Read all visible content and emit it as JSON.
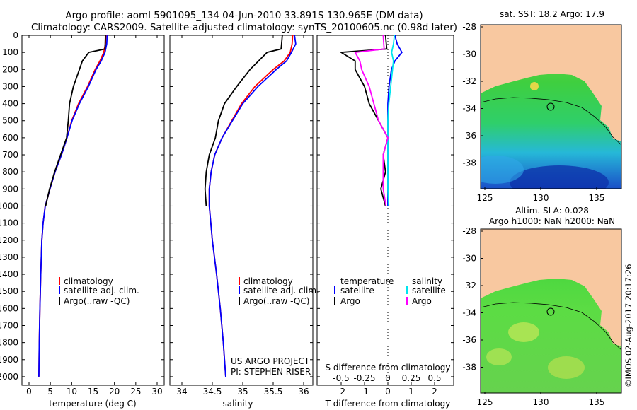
{
  "header": {
    "title_line1": "Argo profile: aoml 5901095_134 04-Jun-2010 33.891S 130.965E (DM data)",
    "title_line2": "Climatology: CARS2009. Satellite-adjusted climatology: synTS_20100605.nc (0.98d later)"
  },
  "colors": {
    "climatology": "#ff0000",
    "satellite": "#0000ff",
    "argo": "#000000",
    "temp_satellite": "#0000ff",
    "sal_satellite": "#00e5ee",
    "sal_argo": "#ff00ff",
    "land": "#f8c8a0"
  },
  "depth_axis": {
    "ticks": [
      "0",
      "100",
      "200",
      "300",
      "400",
      "500",
      "600",
      "700",
      "800",
      "900",
      "1000",
      "1100",
      "1200",
      "1300",
      "1400",
      "1500",
      "1600",
      "1700",
      "1800",
      "1900",
      "2000"
    ]
  },
  "panel_temp": {
    "xlabel": "temperature (deg C)",
    "xticks": [
      "0",
      "5",
      "10",
      "15",
      "20",
      "25",
      "30"
    ],
    "legend": [
      "climatology",
      "satellite-adj. clim.",
      "Argo(..raw -QC)"
    ]
  },
  "panel_sal": {
    "xlabel": "salinity",
    "xticks": [
      "34",
      "34.5",
      "35",
      "35.5",
      "36"
    ],
    "legend": [
      "climatology",
      "satellite-adj. clim.",
      "Argo(..raw -QC)"
    ],
    "credit1": "US ARGO PROJECT",
    "credit2": "PI: STEPHEN RISER"
  },
  "panel_diff": {
    "xlabel": "T difference from climatology",
    "xticks": [
      "-2",
      "-1",
      "0",
      "1",
      "2"
    ],
    "top_label": "S difference from climatology",
    "top_ticks": [
      "-0.5",
      "-0.25",
      "0",
      "0.25",
      "0.5"
    ],
    "legend_temp_title": "temperature",
    "legend_sal_title": "salinity",
    "legend_temp_items": [
      "satellite",
      "Argo"
    ],
    "legend_sal_items": [
      "satellite",
      "Argo"
    ]
  },
  "map_sst": {
    "title": "sat. SST: 18.2 Argo: 17.9",
    "yticks": [
      "-28",
      "-30",
      "-32",
      "-34",
      "-36",
      "-38"
    ],
    "xticks": [
      "125",
      "130",
      "135"
    ]
  },
  "map_sla": {
    "title_line1": "Altim. SLA: 0.028",
    "title_line2": "Argo h1000: NaN h2000: NaN",
    "yticks": [
      "-28",
      "-30",
      "-32",
      "-34",
      "-36",
      "-38"
    ],
    "xticks": [
      "125",
      "130",
      "135"
    ]
  },
  "watermark": "©IMOS 02-Aug-2017 20:17:26",
  "chart_data": [
    {
      "type": "line",
      "panel": "temperature",
      "xlabel": "temperature (deg C)",
      "ylabel": "",
      "xlim": [
        0,
        32
      ],
      "ylim": [
        2050,
        0
      ],
      "series": [
        {
          "name": "climatology",
          "depth": [
            0,
            50,
            100,
            150,
            200,
            300,
            400,
            500,
            600,
            700,
            800,
            900,
            1000,
            1100,
            1200,
            1400,
            1600,
            1800,
            2000
          ],
          "values": [
            18.0,
            17.9,
            17.5,
            16.6,
            15.5,
            13.7,
            11.6,
            10.0,
            8.9,
            7.6,
            6.1,
            4.9,
            3.8,
            3.3,
            3.0,
            2.75,
            2.55,
            2.4,
            2.3
          ]
        },
        {
          "name": "satellite-adj. clim.",
          "depth": [
            0,
            50,
            100,
            150,
            200,
            300,
            400,
            500,
            600,
            700,
            800,
            900,
            1000,
            1100,
            1200,
            1400,
            1600,
            1800,
            2000
          ],
          "values": [
            18.3,
            18.2,
            17.8,
            16.9,
            15.7,
            13.9,
            11.8,
            10.1,
            8.9,
            7.6,
            6.1,
            4.9,
            3.8,
            3.3,
            3.0,
            2.75,
            2.55,
            2.4,
            2.3
          ]
        },
        {
          "name": "Argo(..raw -QC)",
          "depth": [
            0,
            80,
            100,
            150,
            200,
            300,
            400,
            500,
            600,
            700,
            800,
            900,
            1000
          ],
          "values": [
            17.9,
            17.8,
            14.0,
            12.5,
            11.8,
            10.4,
            9.5,
            9.2,
            8.8,
            7.4,
            6.0,
            4.8,
            3.9
          ]
        }
      ]
    },
    {
      "type": "line",
      "panel": "salinity",
      "xlabel": "salinity",
      "ylabel": "",
      "xlim": [
        33.8,
        36.1
      ],
      "ylim": [
        2050,
        0
      ],
      "series": [
        {
          "name": "climatology",
          "depth": [
            0,
            50,
            100,
            150,
            200,
            300,
            400,
            500,
            600,
            700,
            800,
            900,
            1000,
            1200,
            1400,
            1600,
            1800,
            2000
          ],
          "values": [
            35.82,
            35.81,
            35.78,
            35.68,
            35.5,
            35.2,
            34.98,
            34.82,
            34.66,
            34.54,
            34.48,
            34.45,
            34.45,
            34.5,
            34.57,
            34.63,
            34.68,
            34.72
          ]
        },
        {
          "name": "satellite-adj. clim.",
          "depth": [
            0,
            50,
            100,
            150,
            200,
            300,
            400,
            500,
            600,
            700,
            800,
            900,
            1000,
            1200,
            1400,
            1600,
            1800,
            2000
          ],
          "values": [
            35.85,
            35.87,
            35.8,
            35.72,
            35.55,
            35.25,
            35.0,
            34.83,
            34.66,
            34.54,
            34.48,
            34.45,
            34.45,
            34.5,
            34.57,
            34.63,
            34.68,
            34.72
          ]
        },
        {
          "name": "Argo(..raw -QC)",
          "depth": [
            0,
            80,
            100,
            200,
            300,
            400,
            500,
            600,
            700,
            800,
            900,
            1000
          ],
          "values": [
            35.65,
            35.63,
            35.4,
            35.12,
            34.9,
            34.7,
            34.6,
            34.55,
            34.45,
            34.4,
            34.38,
            34.4
          ]
        }
      ]
    },
    {
      "type": "line",
      "panel": "difference",
      "xlabel": "T difference from climatology",
      "top_xlabel": "S difference from climatology",
      "xlim": [
        -2.4,
        2.3
      ],
      "top_xlim": [
        -0.6,
        0.575
      ],
      "ylim": [
        2050,
        0
      ],
      "series": [
        {
          "name": "temperature satellite",
          "axis": "T",
          "depth": [
            0,
            50,
            100,
            150,
            200,
            300,
            400,
            500,
            600,
            700,
            800,
            900,
            1000
          ],
          "values": [
            0.3,
            0.4,
            0.6,
            0.3,
            0.15,
            0.05,
            0,
            0,
            0,
            0,
            0,
            0,
            0
          ]
        },
        {
          "name": "temperature Argo",
          "axis": "T",
          "depth": [
            0,
            80,
            100,
            150,
            200,
            300,
            400,
            500,
            600,
            700,
            800,
            900,
            1000
          ],
          "values": [
            -0.1,
            -0.05,
            -2.0,
            -1.4,
            -1.4,
            -1.0,
            -0.8,
            -0.4,
            0,
            -0.2,
            -0.1,
            -0.3,
            -0.1
          ]
        },
        {
          "name": "salinity satellite",
          "axis": "S",
          "depth": [
            0,
            50,
            100,
            150,
            200,
            300,
            400,
            500,
            600,
            700,
            800,
            900,
            1000
          ],
          "values": [
            0.07,
            0.06,
            0.04,
            0.06,
            0.05,
            0.03,
            0.01,
            0,
            0,
            0,
            0,
            0,
            0.01
          ]
        },
        {
          "name": "salinity Argo",
          "axis": "S",
          "depth": [
            0,
            80,
            100,
            150,
            200,
            300,
            400,
            500,
            600,
            700,
            800,
            900,
            1000
          ],
          "values": [
            -0.05,
            -0.04,
            -0.35,
            -0.3,
            -0.28,
            -0.2,
            -0.15,
            -0.1,
            0,
            -0.05,
            -0.05,
            -0.05,
            -0.02
          ]
        }
      ]
    }
  ]
}
